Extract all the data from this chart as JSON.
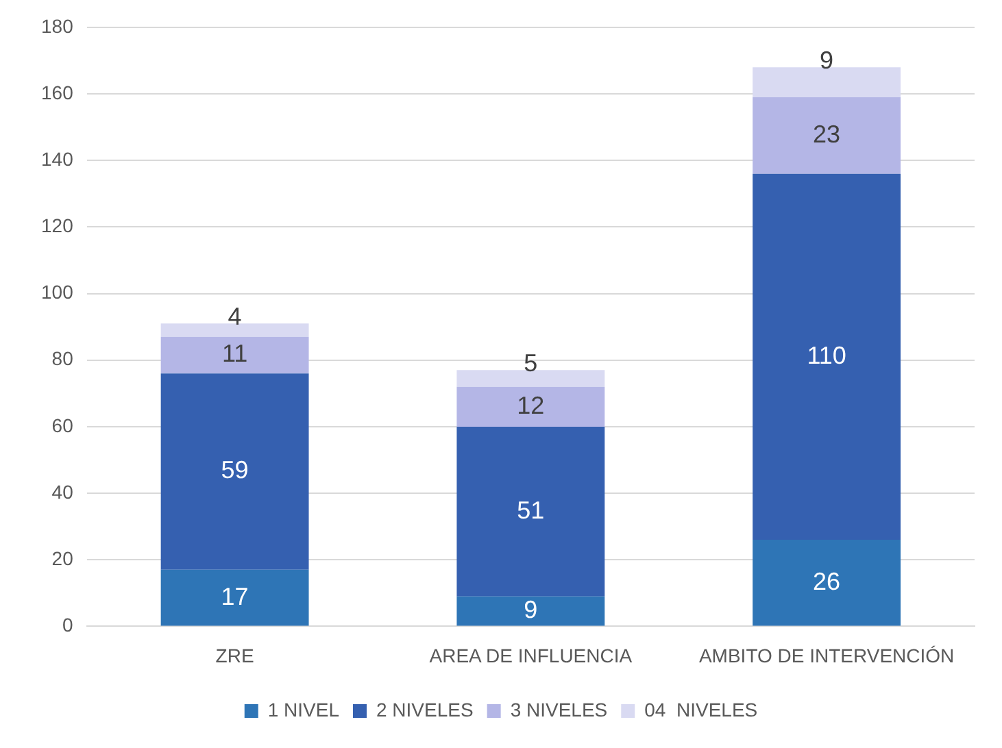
{
  "chart_data": {
    "type": "bar",
    "stacked": true,
    "categories": [
      "ZRE",
      "AREA DE INFLUENCIA",
      "AMBITO DE INTERVENCIÓN"
    ],
    "series": [
      {
        "name": "1 NIVEL",
        "color": "#2e75b6",
        "values": [
          17,
          9,
          26
        ]
      },
      {
        "name": "2 NIVELES",
        "color": "#3560b0",
        "values": [
          59,
          51,
          110
        ]
      },
      {
        "name": "3 NIVELES",
        "color": "#b4b6e6",
        "values": [
          11,
          12,
          23
        ]
      },
      {
        "name": "04  NIVELES",
        "color": "#d9daf2",
        "values": [
          4,
          5,
          9
        ]
      }
    ],
    "ylim": [
      0,
      180
    ],
    "yticks": [
      0,
      20,
      40,
      60,
      80,
      100,
      120,
      140,
      160,
      180
    ],
    "grid": "y",
    "legend": "bottom",
    "data_labels": true
  }
}
